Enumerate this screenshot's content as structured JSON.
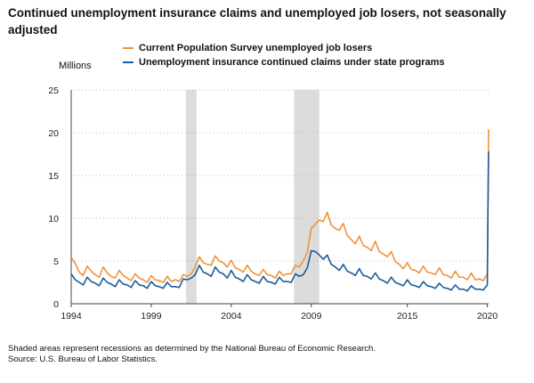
{
  "title": "Continued unemployment insurance claims and unemployed job losers, not seasonally adjusted",
  "footnote_lines": [
    "Shaded areas represent recessions as determined by the National Bureau of Economic Research.",
    "Source: U.S. Bureau of Labor Statistics."
  ],
  "chart_data": {
    "type": "line",
    "title": "Continued unemployment insurance claims and unemployed job losers, not seasonally adjusted",
    "ylabel": "Millions",
    "xlabel": "",
    "xlim": [
      1994.0,
      2020.08
    ],
    "ylim": [
      0,
      25
    ],
    "x_ticks": [
      1994,
      1999,
      2004,
      2009,
      2015,
      2020
    ],
    "y_ticks": [
      0,
      5,
      10,
      15,
      20,
      25
    ],
    "grid": "horizontal dotted",
    "legend_position": "top",
    "recessions": [
      [
        2001.17,
        2001.83
      ],
      [
        2007.92,
        2009.5
      ]
    ],
    "series": [
      {
        "name": "Current Population Survey unemployed job losers",
        "color": "#f0923a",
        "points": [
          [
            1994.0,
            5.4
          ],
          [
            1994.25,
            4.7
          ],
          [
            1994.5,
            3.7
          ],
          [
            1994.75,
            3.3
          ],
          [
            1995.0,
            4.4
          ],
          [
            1995.25,
            3.8
          ],
          [
            1995.5,
            3.4
          ],
          [
            1995.75,
            3.1
          ],
          [
            1996.0,
            4.3
          ],
          [
            1996.25,
            3.6
          ],
          [
            1996.5,
            3.2
          ],
          [
            1996.75,
            3.0
          ],
          [
            1997.0,
            3.9
          ],
          [
            1997.25,
            3.3
          ],
          [
            1997.5,
            3.0
          ],
          [
            1997.75,
            2.7
          ],
          [
            1998.0,
            3.5
          ],
          [
            1998.25,
            3.0
          ],
          [
            1998.5,
            2.8
          ],
          [
            1998.75,
            2.5
          ],
          [
            1999.0,
            3.3
          ],
          [
            1999.25,
            2.8
          ],
          [
            1999.5,
            2.7
          ],
          [
            1999.75,
            2.5
          ],
          [
            2000.0,
            3.2
          ],
          [
            2000.25,
            2.6
          ],
          [
            2000.5,
            2.8
          ],
          [
            2000.75,
            2.6
          ],
          [
            2001.0,
            3.4
          ],
          [
            2001.25,
            3.2
          ],
          [
            2001.5,
            3.5
          ],
          [
            2001.75,
            4.3
          ],
          [
            2002.0,
            5.5
          ],
          [
            2002.25,
            4.8
          ],
          [
            2002.5,
            4.6
          ],
          [
            2002.75,
            4.5
          ],
          [
            2003.0,
            5.6
          ],
          [
            2003.25,
            5.0
          ],
          [
            2003.5,
            4.8
          ],
          [
            2003.75,
            4.3
          ],
          [
            2004.0,
            5.1
          ],
          [
            2004.25,
            4.2
          ],
          [
            2004.5,
            4.0
          ],
          [
            2004.75,
            3.7
          ],
          [
            2005.0,
            4.5
          ],
          [
            2005.25,
            3.8
          ],
          [
            2005.5,
            3.5
          ],
          [
            2005.75,
            3.3
          ],
          [
            2006.0,
            4.0
          ],
          [
            2006.25,
            3.4
          ],
          [
            2006.5,
            3.3
          ],
          [
            2006.75,
            3.0
          ],
          [
            2007.0,
            3.8
          ],
          [
            2007.25,
            3.3
          ],
          [
            2007.5,
            3.5
          ],
          [
            2007.75,
            3.5
          ],
          [
            2008.0,
            4.5
          ],
          [
            2008.25,
            4.3
          ],
          [
            2008.5,
            5.0
          ],
          [
            2008.75,
            6.0
          ],
          [
            2009.0,
            8.8
          ],
          [
            2009.25,
            9.3
          ],
          [
            2009.5,
            9.8
          ],
          [
            2009.75,
            9.6
          ],
          [
            2010.0,
            10.7
          ],
          [
            2010.25,
            9.2
          ],
          [
            2010.5,
            8.8
          ],
          [
            2010.75,
            8.6
          ],
          [
            2011.0,
            9.4
          ],
          [
            2011.25,
            8.0
          ],
          [
            2011.5,
            7.5
          ],
          [
            2011.75,
            7.0
          ],
          [
            2012.0,
            7.9
          ],
          [
            2012.25,
            6.8
          ],
          [
            2012.5,
            6.6
          ],
          [
            2012.75,
            6.2
          ],
          [
            2013.0,
            7.3
          ],
          [
            2013.25,
            6.1
          ],
          [
            2013.5,
            5.8
          ],
          [
            2013.75,
            5.5
          ],
          [
            2014.0,
            6.1
          ],
          [
            2014.25,
            4.9
          ],
          [
            2014.5,
            4.6
          ],
          [
            2014.75,
            4.1
          ],
          [
            2015.0,
            4.8
          ],
          [
            2015.25,
            4.0
          ],
          [
            2015.5,
            3.9
          ],
          [
            2015.75,
            3.6
          ],
          [
            2016.0,
            4.4
          ],
          [
            2016.25,
            3.7
          ],
          [
            2016.5,
            3.6
          ],
          [
            2016.75,
            3.4
          ],
          [
            2017.0,
            4.2
          ],
          [
            2017.25,
            3.4
          ],
          [
            2017.5,
            3.3
          ],
          [
            2017.75,
            3.0
          ],
          [
            2018.0,
            3.8
          ],
          [
            2018.25,
            3.1
          ],
          [
            2018.5,
            3.1
          ],
          [
            2018.75,
            2.8
          ],
          [
            2019.0,
            3.6
          ],
          [
            2019.25,
            2.8
          ],
          [
            2019.5,
            2.9
          ],
          [
            2019.75,
            2.7
          ],
          [
            2020.0,
            3.5
          ],
          [
            2020.04,
            12.0
          ],
          [
            2020.08,
            20.4
          ]
        ]
      },
      {
        "name": "Unemployment insurance continued claims under state programs",
        "color": "#1f5b9a",
        "points": [
          [
            1994.0,
            3.5
          ],
          [
            1994.25,
            2.8
          ],
          [
            1994.5,
            2.5
          ],
          [
            1994.75,
            2.2
          ],
          [
            1995.0,
            3.1
          ],
          [
            1995.25,
            2.6
          ],
          [
            1995.5,
            2.4
          ],
          [
            1995.75,
            2.1
          ],
          [
            1996.0,
            3.0
          ],
          [
            1996.25,
            2.5
          ],
          [
            1996.5,
            2.3
          ],
          [
            1996.75,
            2.0
          ],
          [
            1997.0,
            2.8
          ],
          [
            1997.25,
            2.3
          ],
          [
            1997.5,
            2.2
          ],
          [
            1997.75,
            1.9
          ],
          [
            1998.0,
            2.7
          ],
          [
            1998.25,
            2.2
          ],
          [
            1998.5,
            2.1
          ],
          [
            1998.75,
            1.8
          ],
          [
            1999.0,
            2.6
          ],
          [
            1999.25,
            2.1
          ],
          [
            1999.5,
            2.0
          ],
          [
            1999.75,
            1.8
          ],
          [
            2000.0,
            2.5
          ],
          [
            2000.25,
            2.0
          ],
          [
            2000.5,
            2.0
          ],
          [
            2000.75,
            1.9
          ],
          [
            2001.0,
            2.9
          ],
          [
            2001.25,
            2.8
          ],
          [
            2001.5,
            3.0
          ],
          [
            2001.75,
            3.4
          ],
          [
            2002.0,
            4.5
          ],
          [
            2002.25,
            3.7
          ],
          [
            2002.5,
            3.5
          ],
          [
            2002.75,
            3.2
          ],
          [
            2003.0,
            4.3
          ],
          [
            2003.25,
            3.7
          ],
          [
            2003.5,
            3.5
          ],
          [
            2003.75,
            3.0
          ],
          [
            2004.0,
            3.9
          ],
          [
            2004.25,
            3.1
          ],
          [
            2004.5,
            2.9
          ],
          [
            2004.75,
            2.6
          ],
          [
            2005.0,
            3.4
          ],
          [
            2005.25,
            2.8
          ],
          [
            2005.5,
            2.6
          ],
          [
            2005.75,
            2.4
          ],
          [
            2006.0,
            3.2
          ],
          [
            2006.25,
            2.6
          ],
          [
            2006.5,
            2.5
          ],
          [
            2006.75,
            2.3
          ],
          [
            2007.0,
            3.1
          ],
          [
            2007.25,
            2.6
          ],
          [
            2007.5,
            2.6
          ],
          [
            2007.75,
            2.5
          ],
          [
            2008.0,
            3.5
          ],
          [
            2008.25,
            3.2
          ],
          [
            2008.5,
            3.4
          ],
          [
            2008.75,
            4.2
          ],
          [
            2009.0,
            6.2
          ],
          [
            2009.25,
            6.1
          ],
          [
            2009.5,
            5.7
          ],
          [
            2009.75,
            5.2
          ],
          [
            2010.0,
            5.7
          ],
          [
            2010.25,
            4.6
          ],
          [
            2010.5,
            4.3
          ],
          [
            2010.75,
            3.9
          ],
          [
            2011.0,
            4.6
          ],
          [
            2011.25,
            3.8
          ],
          [
            2011.5,
            3.6
          ],
          [
            2011.75,
            3.3
          ],
          [
            2012.0,
            4.1
          ],
          [
            2012.25,
            3.3
          ],
          [
            2012.5,
            3.2
          ],
          [
            2012.75,
            2.9
          ],
          [
            2013.0,
            3.6
          ],
          [
            2013.25,
            2.9
          ],
          [
            2013.5,
            2.7
          ],
          [
            2013.75,
            2.4
          ],
          [
            2014.0,
            3.1
          ],
          [
            2014.25,
            2.5
          ],
          [
            2014.5,
            2.3
          ],
          [
            2014.75,
            2.1
          ],
          [
            2015.0,
            2.8
          ],
          [
            2015.25,
            2.2
          ],
          [
            2015.5,
            2.1
          ],
          [
            2015.75,
            1.9
          ],
          [
            2016.0,
            2.6
          ],
          [
            2016.25,
            2.1
          ],
          [
            2016.5,
            2.0
          ],
          [
            2016.75,
            1.8
          ],
          [
            2017.0,
            2.4
          ],
          [
            2017.25,
            1.9
          ],
          [
            2017.5,
            1.8
          ],
          [
            2017.75,
            1.6
          ],
          [
            2018.0,
            2.2
          ],
          [
            2018.25,
            1.7
          ],
          [
            2018.5,
            1.7
          ],
          [
            2018.75,
            1.5
          ],
          [
            2019.0,
            2.1
          ],
          [
            2019.25,
            1.7
          ],
          [
            2019.5,
            1.7
          ],
          [
            2019.75,
            1.6
          ],
          [
            2020.0,
            2.2
          ],
          [
            2020.04,
            11.0
          ],
          [
            2020.08,
            17.8
          ]
        ]
      }
    ]
  }
}
